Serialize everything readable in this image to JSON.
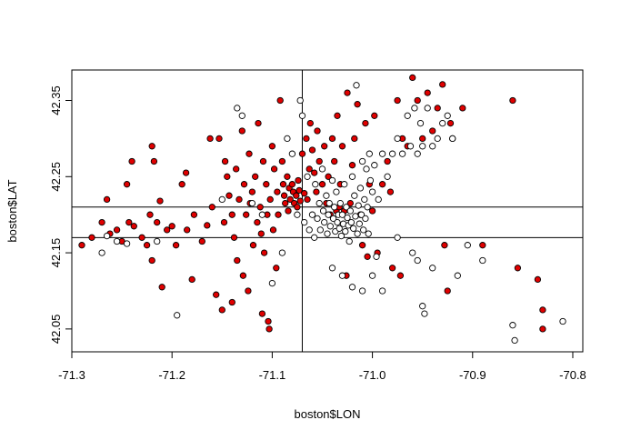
{
  "chart_data": {
    "type": "scatter",
    "title": "",
    "xlabel": "boston$LON",
    "ylabel": "boston$LAT",
    "xlim": [
      -71.3,
      -70.79
    ],
    "ylim": [
      42.02,
      42.39
    ],
    "xticks": [
      -71.3,
      -71.2,
      -71.1,
      -71.0,
      -70.9,
      -70.8
    ],
    "xtick_labels": [
      "-71.3",
      "-71.2",
      "-71.1",
      "-71.0",
      "-70.9",
      "-70.8"
    ],
    "yticks": [
      42.05,
      42.15,
      42.25,
      42.35
    ],
    "ytick_labels": [
      "42.05",
      "42.15",
      "42.25",
      "42.35"
    ],
    "grid": false,
    "reference_lines": {
      "vertical_x": [
        -71.07
      ],
      "horizontal_y": [
        42.17,
        42.21
      ]
    },
    "series": [
      {
        "fill": "#e00000",
        "stroke": "#000000",
        "points": [
          [
            -71.29,
            42.16
          ],
          [
            -71.28,
            42.17
          ],
          [
            -71.27,
            42.19
          ],
          [
            -71.265,
            42.22
          ],
          [
            -71.262,
            42.175
          ],
          [
            -71.255,
            42.18
          ],
          [
            -71.25,
            42.165
          ],
          [
            -71.245,
            42.24
          ],
          [
            -71.243,
            42.19
          ],
          [
            -71.24,
            42.27
          ],
          [
            -71.238,
            42.185
          ],
          [
            -71.23,
            42.17
          ],
          [
            -71.225,
            42.16
          ],
          [
            -71.222,
            42.2
          ],
          [
            -71.22,
            42.14
          ],
          [
            -71.22,
            42.29
          ],
          [
            -71.218,
            42.27
          ],
          [
            -71.215,
            42.19
          ],
          [
            -71.212,
            42.218
          ],
          [
            -71.21,
            42.105
          ],
          [
            -71.205,
            42.18
          ],
          [
            -71.2,
            42.185
          ],
          [
            -71.196,
            42.16
          ],
          [
            -71.19,
            42.24
          ],
          [
            -71.186,
            42.255
          ],
          [
            -71.185,
            42.18
          ],
          [
            -71.18,
            42.115
          ],
          [
            -71.178,
            42.2
          ],
          [
            -71.17,
            42.165
          ],
          [
            -71.165,
            42.186
          ],
          [
            -71.162,
            42.3
          ],
          [
            -71.16,
            42.21
          ],
          [
            -71.156,
            42.095
          ],
          [
            -71.153,
            42.3
          ],
          [
            -71.15,
            42.075
          ],
          [
            -71.148,
            42.19
          ],
          [
            -71.147,
            42.27
          ],
          [
            -71.145,
            42.25
          ],
          [
            -71.143,
            42.225
          ],
          [
            -71.14,
            42.2
          ],
          [
            -71.138,
            42.17
          ],
          [
            -71.136,
            42.26
          ],
          [
            -71.135,
            42.14
          ],
          [
            -71.133,
            42.22
          ],
          [
            -71.13,
            42.31
          ],
          [
            -71.129,
            42.12
          ],
          [
            -71.128,
            42.24
          ],
          [
            -71.126,
            42.2
          ],
          [
            -71.124,
            42.1
          ],
          [
            -71.123,
            42.28
          ],
          [
            -71.12,
            42.23
          ],
          [
            -71.119,
            42.16
          ],
          [
            -71.117,
            42.25
          ],
          [
            -71.115,
            42.19
          ],
          [
            -71.114,
            42.32
          ],
          [
            -71.112,
            42.21
          ],
          [
            -71.11,
            42.07
          ],
          [
            -71.109,
            42.27
          ],
          [
            -71.108,
            42.15
          ],
          [
            -71.106,
            42.24
          ],
          [
            -71.105,
            42.2
          ],
          [
            -71.103,
            42.05
          ],
          [
            -71.102,
            42.22
          ],
          [
            -71.1,
            42.29
          ],
          [
            -71.099,
            42.18
          ],
          [
            -71.098,
            42.26
          ],
          [
            -71.096,
            42.13
          ],
          [
            -71.095,
            42.23
          ],
          [
            -71.094,
            42.2
          ],
          [
            -71.092,
            42.35
          ],
          [
            -71.09,
            42.27
          ],
          [
            -71.089,
            42.24
          ],
          [
            -71.088,
            42.225
          ],
          [
            -71.087,
            42.215
          ],
          [
            -71.085,
            42.25
          ],
          [
            -71.084,
            42.205
          ],
          [
            -71.083,
            42.235
          ],
          [
            -71.082,
            42.22
          ],
          [
            -71.08,
            42.24
          ],
          [
            -71.079,
            42.23
          ],
          [
            -71.078,
            42.215
          ],
          [
            -71.076,
            42.225
          ],
          [
            -71.075,
            42.21
          ],
          [
            -71.074,
            42.245
          ],
          [
            -71.073,
            42.232
          ],
          [
            -71.072,
            42.218
          ],
          [
            -71.07,
            42.28
          ],
          [
            -71.068,
            42.228
          ],
          [
            -71.066,
            42.3
          ],
          [
            -71.065,
            42.22
          ],
          [
            -71.063,
            42.26
          ],
          [
            -71.062,
            42.32
          ],
          [
            -71.06,
            42.285
          ],
          [
            -71.058,
            42.255
          ],
          [
            -71.056,
            42.23
          ],
          [
            -71.055,
            42.31
          ],
          [
            -71.053,
            42.27
          ],
          [
            -71.05,
            42.24
          ],
          [
            -71.048,
            42.29
          ],
          [
            -71.046,
            42.215
          ],
          [
            -71.044,
            42.25
          ],
          [
            -71.042,
            42.2
          ],
          [
            -71.04,
            42.3
          ],
          [
            -71.038,
            42.27
          ],
          [
            -71.036,
            42.205
          ],
          [
            -71.035,
            42.33
          ],
          [
            -71.033,
            42.21
          ],
          [
            -71.032,
            42.24
          ],
          [
            -71.03,
            42.29
          ],
          [
            -71.028,
            42.205
          ],
          [
            -71.026,
            42.12
          ],
          [
            -71.025,
            42.36
          ],
          [
            -71.022,
            42.215
          ],
          [
            -71.02,
            42.265
          ],
          [
            -71.018,
            42.3
          ],
          [
            -71.015,
            42.345
          ],
          [
            -71.012,
            42.2
          ],
          [
            -71.01,
            42.16
          ],
          [
            -71.007,
            42.32
          ],
          [
            -71.005,
            42.145
          ],
          [
            -71.003,
            42.24
          ],
          [
            -71.0,
            42.205
          ],
          [
            -70.998,
            42.33
          ],
          [
            -70.995,
            42.15
          ],
          [
            -70.99,
            42.24
          ],
          [
            -70.985,
            42.27
          ],
          [
            -70.982,
            42.23
          ],
          [
            -70.98,
            42.13
          ],
          [
            -70.975,
            42.35
          ],
          [
            -70.972,
            42.12
          ],
          [
            -70.97,
            42.3
          ],
          [
            -70.965,
            42.29
          ],
          [
            -70.96,
            42.38
          ],
          [
            -70.955,
            42.35
          ],
          [
            -70.95,
            42.3
          ],
          [
            -70.945,
            42.36
          ],
          [
            -70.94,
            42.31
          ],
          [
            -70.935,
            42.34
          ],
          [
            -70.93,
            42.371
          ],
          [
            -70.928,
            42.16
          ],
          [
            -70.925,
            42.1
          ],
          [
            -70.922,
            42.32
          ],
          [
            -70.92,
            42.3
          ],
          [
            -70.91,
            42.34
          ],
          [
            -70.89,
            42.16
          ],
          [
            -70.86,
            42.35
          ],
          [
            -70.855,
            42.13
          ],
          [
            -70.835,
            42.115
          ],
          [
            -70.83,
            42.075
          ],
          [
            -70.83,
            42.05
          ],
          [
            -71.104,
            42.06
          ],
          [
            -71.14,
            42.085
          ],
          [
            -71.122,
            42.215
          ],
          [
            -71.111,
            42.175
          ]
        ]
      },
      {
        "fill": "#ffffff",
        "stroke": "#000000",
        "points": [
          [
            -71.27,
            42.15
          ],
          [
            -71.265,
            42.172
          ],
          [
            -71.255,
            42.165
          ],
          [
            -71.245,
            42.162
          ],
          [
            -71.215,
            42.165
          ],
          [
            -71.195,
            42.068
          ],
          [
            -71.15,
            42.22
          ],
          [
            -71.135,
            42.34
          ],
          [
            -71.13,
            42.33
          ],
          [
            -71.12,
            42.215
          ],
          [
            -71.11,
            42.2
          ],
          [
            -71.1,
            42.11
          ],
          [
            -71.09,
            42.15
          ],
          [
            -71.085,
            42.3
          ],
          [
            -71.08,
            42.28
          ],
          [
            -71.075,
            42.2
          ],
          [
            -71.072,
            42.35
          ],
          [
            -71.07,
            42.33
          ],
          [
            -71.068,
            42.19
          ],
          [
            -71.065,
            42.25
          ],
          [
            -71.063,
            42.18
          ],
          [
            -71.06,
            42.2
          ],
          [
            -71.058,
            42.17
          ],
          [
            -71.057,
            42.24
          ],
          [
            -71.055,
            42.195
          ],
          [
            -71.053,
            42.215
          ],
          [
            -71.052,
            42.18
          ],
          [
            -71.05,
            42.26
          ],
          [
            -71.049,
            42.205
          ],
          [
            -71.048,
            42.19
          ],
          [
            -71.046,
            42.225
          ],
          [
            -71.045,
            42.175
          ],
          [
            -71.044,
            42.2
          ],
          [
            -71.043,
            42.215
          ],
          [
            -71.042,
            42.185
          ],
          [
            -71.04,
            42.245
          ],
          [
            -71.039,
            42.195
          ],
          [
            -71.038,
            42.21
          ],
          [
            -71.037,
            42.178
          ],
          [
            -71.036,
            42.23
          ],
          [
            -71.035,
            42.19
          ],
          [
            -71.034,
            42.2
          ],
          [
            -71.033,
            42.182
          ],
          [
            -71.032,
            42.215
          ],
          [
            -71.031,
            42.172
          ],
          [
            -71.03,
            42.2
          ],
          [
            -71.029,
            42.188
          ],
          [
            -71.028,
            42.24
          ],
          [
            -71.027,
            42.178
          ],
          [
            -71.026,
            42.21
          ],
          [
            -71.025,
            42.196
          ],
          [
            -71.024,
            42.186
          ],
          [
            -71.023,
            42.165
          ],
          [
            -71.022,
            42.205
          ],
          [
            -71.021,
            42.19
          ],
          [
            -71.02,
            42.25
          ],
          [
            -71.019,
            42.182
          ],
          [
            -71.018,
            42.225
          ],
          [
            -71.017,
            42.198
          ],
          [
            -71.016,
            42.37
          ],
          [
            -71.015,
            42.175
          ],
          [
            -71.014,
            42.212
          ],
          [
            -71.013,
            42.188
          ],
          [
            -71.012,
            42.235
          ],
          [
            -71.011,
            42.2
          ],
          [
            -71.01,
            42.27
          ],
          [
            -71.009,
            42.18
          ],
          [
            -71.008,
            42.22
          ],
          [
            -71.007,
            42.195
          ],
          [
            -71.006,
            42.26
          ],
          [
            -71.005,
            42.21
          ],
          [
            -71.004,
            42.175
          ],
          [
            -71.003,
            42.28
          ],
          [
            -71.002,
            42.245
          ],
          [
            -71.0,
            42.23
          ],
          [
            -70.998,
            42.265
          ],
          [
            -70.996,
            42.145
          ],
          [
            -70.994,
            42.22
          ],
          [
            -70.99,
            42.28
          ],
          [
            -70.985,
            42.25
          ],
          [
            -70.98,
            42.28
          ],
          [
            -70.975,
            42.3
          ],
          [
            -70.97,
            42.28
          ],
          [
            -70.965,
            42.33
          ],
          [
            -70.962,
            42.29
          ],
          [
            -70.958,
            42.34
          ],
          [
            -70.955,
            42.28
          ],
          [
            -70.952,
            42.32
          ],
          [
            -70.95,
            42.29
          ],
          [
            -70.945,
            42.34
          ],
          [
            -70.94,
            42.29
          ],
          [
            -70.935,
            42.3
          ],
          [
            -70.93,
            42.32
          ],
          [
            -70.925,
            42.33
          ],
          [
            -70.92,
            42.3
          ],
          [
            -70.96,
            42.15
          ],
          [
            -70.955,
            42.14
          ],
          [
            -70.95,
            42.08
          ],
          [
            -70.948,
            42.07
          ],
          [
            -70.94,
            42.13
          ],
          [
            -70.915,
            42.12
          ],
          [
            -70.905,
            42.16
          ],
          [
            -70.89,
            42.14
          ],
          [
            -70.86,
            42.055
          ],
          [
            -70.858,
            42.035
          ],
          [
            -70.81,
            42.06
          ],
          [
            -71.04,
            42.13
          ],
          [
            -71.03,
            42.12
          ],
          [
            -71.02,
            42.105
          ],
          [
            -71.01,
            42.1
          ],
          [
            -71.0,
            42.12
          ],
          [
            -70.99,
            42.1
          ],
          [
            -70.975,
            42.17
          ]
        ]
      }
    ]
  }
}
